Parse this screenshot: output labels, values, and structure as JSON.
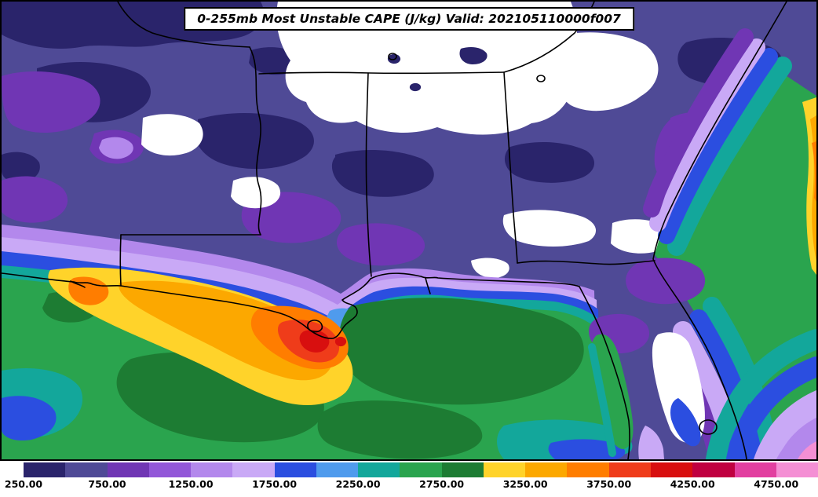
{
  "title": {
    "text": "0-255mb Most Unstable CAPE (J/kg) Valid: 202105110000f007"
  },
  "chart_data": {
    "type": "heatmap",
    "title": "0-255mb Most Unstable CAPE (J/kg)",
    "valid_label": "Valid: 202105110000f007",
    "variable": "Most Unstable CAPE",
    "level_layer": "0-255mb",
    "units": "J/kg",
    "colorbar": {
      "orientation": "horizontal",
      "min": 250,
      "max": 5000,
      "interval": 250,
      "tick_values": [
        250,
        750,
        1250,
        1750,
        2250,
        2750,
        3250,
        3750,
        4250,
        4750
      ],
      "tick_labels": [
        "250.00",
        "750.00",
        "1250.00",
        "1750.00",
        "2250.00",
        "2750.00",
        "3250.00",
        "3750.00",
        "4250.00",
        "4750.00"
      ],
      "colors": [
        "#2a246b",
        "#4f4a96",
        "#7036b4",
        "#9257d8",
        "#b388ec",
        "#c9a9f6",
        "#2b4ee0",
        "#4f9bed",
        "#13a79b",
        "#2aa44e",
        "#1d7c33",
        "#ffd32a",
        "#fca800",
        "#ff7d00",
        "#ef3c1a",
        "#d80f0f",
        "#c00040",
        "#e23fa0",
        "#f48fd4"
      ]
    }
  }
}
